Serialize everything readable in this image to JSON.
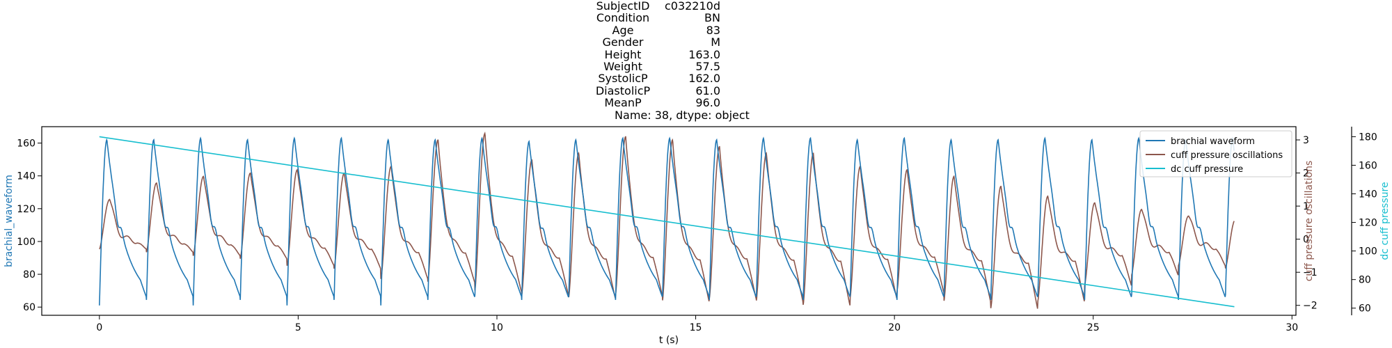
{
  "title_rows": [
    {
      "key": "SubjectID",
      "value": "c032210d"
    },
    {
      "key": "Condition",
      "value": "BN"
    },
    {
      "key": "Age",
      "value": "83"
    },
    {
      "key": "Gender",
      "value": "M"
    },
    {
      "key": "Height",
      "value": "163.0"
    },
    {
      "key": "Weight",
      "value": "57.5"
    },
    {
      "key": "SystolicP",
      "value": "162.0"
    },
    {
      "key": "DiastolicP",
      "value": "61.0"
    },
    {
      "key": "MeanP",
      "value": "96.0"
    }
  ],
  "title_footer": "Name: 38, dtype: object",
  "chart_data": {
    "type": "line",
    "xlabel": "t (s)",
    "xlim": [
      -1.45,
      30.1
    ],
    "xticks": [
      0,
      5,
      10,
      15,
      20,
      25,
      30
    ],
    "grid": false,
    "legend_position": "top-right",
    "axes": [
      {
        "id": "left",
        "label": "brachial_waveform",
        "color": "#1f77b4",
        "ylim": [
          55,
          170
        ],
        "ticks": [
          60,
          80,
          100,
          120,
          140,
          160
        ]
      },
      {
        "id": "right1",
        "label": "cuff pressure oscillations",
        "color": "#8c564b",
        "ylim": [
          -2.3,
          3.4
        ],
        "ticks": [
          -2,
          -1,
          0,
          1,
          2,
          3
        ]
      },
      {
        "id": "right2",
        "label": "dc cuff pressure",
        "color": "#17becf",
        "ylim": [
          55,
          187
        ],
        "ticks": [
          60,
          80,
          100,
          120,
          140,
          160,
          180
        ]
      }
    ],
    "series": [
      {
        "name": "brachial waveform",
        "axis": "left",
        "color": "#1f77b4",
        "beat_period_s": 1.18,
        "t_start": 0.0,
        "t_end": 28.55,
        "systolic_peak": 162,
        "diastolic_trough": 61,
        "beat_peaks": [
          162,
          162,
          163,
          162,
          163,
          163,
          162,
          162,
          163,
          161,
          162,
          163,
          163,
          162,
          163,
          163,
          162,
          163,
          162,
          162,
          163,
          162,
          163,
          162,
          163,
          164
        ]
      },
      {
        "name": "cuff pressure oscillations",
        "axis": "right1",
        "color": "#8c564b",
        "beat_period_s": 1.18,
        "t_start": 0.0,
        "t_end": 28.55,
        "beat_peaks": [
          1.2,
          1.7,
          1.9,
          2.0,
          2.1,
          2.0,
          2.2,
          3.0,
          3.2,
          2.4,
          2.6,
          3.1,
          3.0,
          2.8,
          2.6,
          2.6,
          2.2,
          2.1,
          1.9,
          1.6,
          1.3,
          1.1,
          0.9,
          0.7,
          0.6,
          0.8
        ],
        "beat_troughs": [
          -0.3,
          -0.4,
          -0.5,
          -0.6,
          -0.8,
          -0.9,
          -1.2,
          -1.3,
          -1.6,
          -1.7,
          -1.8,
          -1.7,
          -1.9,
          -1.8,
          -1.9,
          -2.0,
          -1.8,
          -1.6,
          -1.9,
          -2.1,
          -1.9,
          -1.4,
          -1.1,
          -0.8,
          -0.9,
          -0.5
        ]
      },
      {
        "name": "dc cuff pressure",
        "axis": "right2",
        "color": "#17becf",
        "x": [
          0.0,
          28.55
        ],
        "y": [
          180.0,
          61.0
        ]
      }
    ]
  }
}
